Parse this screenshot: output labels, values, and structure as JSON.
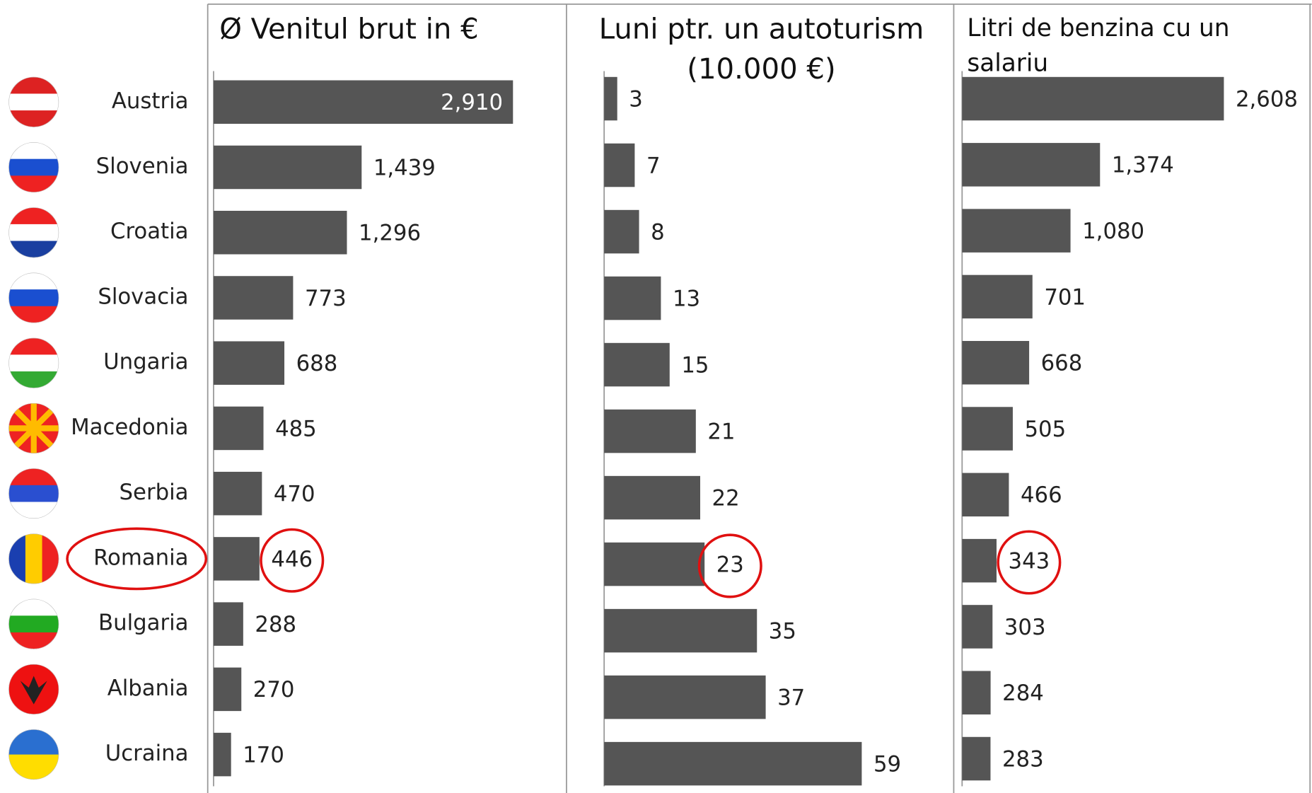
{
  "chart_data": [
    {
      "type": "barh",
      "title": "Ø Venitul brut in €",
      "color": "#555555",
      "categories": [
        "Austria",
        "Slovenia",
        "Croatia",
        "Slovacia",
        "Ungaria",
        "Macedonia",
        "Serbia",
        "Romania",
        "Bulgaria",
        "Albania",
        "Ucraina"
      ],
      "values": [
        2910,
        1439,
        1296,
        773,
        688,
        485,
        470,
        446,
        288,
        270,
        170
      ],
      "value_labels": [
        "2,910",
        "1,439",
        "1,296",
        "773",
        "688",
        "485",
        "470",
        "446",
        "288",
        "270",
        "170"
      ]
    },
    {
      "type": "barh",
      "title": "Luni ptr. un autoturism (10.000 €)",
      "color": "#555555",
      "values": [
        3,
        7,
        8,
        13,
        15,
        21,
        22,
        23,
        35,
        37,
        59
      ]
    },
    {
      "type": "barh",
      "title": "Litri de benzina cu un salariu",
      "color": "#555555",
      "values": [
        2608,
        1374,
        1080,
        701,
        668,
        505,
        466,
        343,
        303,
        284,
        283
      ],
      "value_labels": [
        "2,608",
        "1,374",
        "1,080",
        "701",
        "668",
        "505",
        "466",
        "343",
        "303",
        "284",
        "283"
      ]
    }
  ]
}
